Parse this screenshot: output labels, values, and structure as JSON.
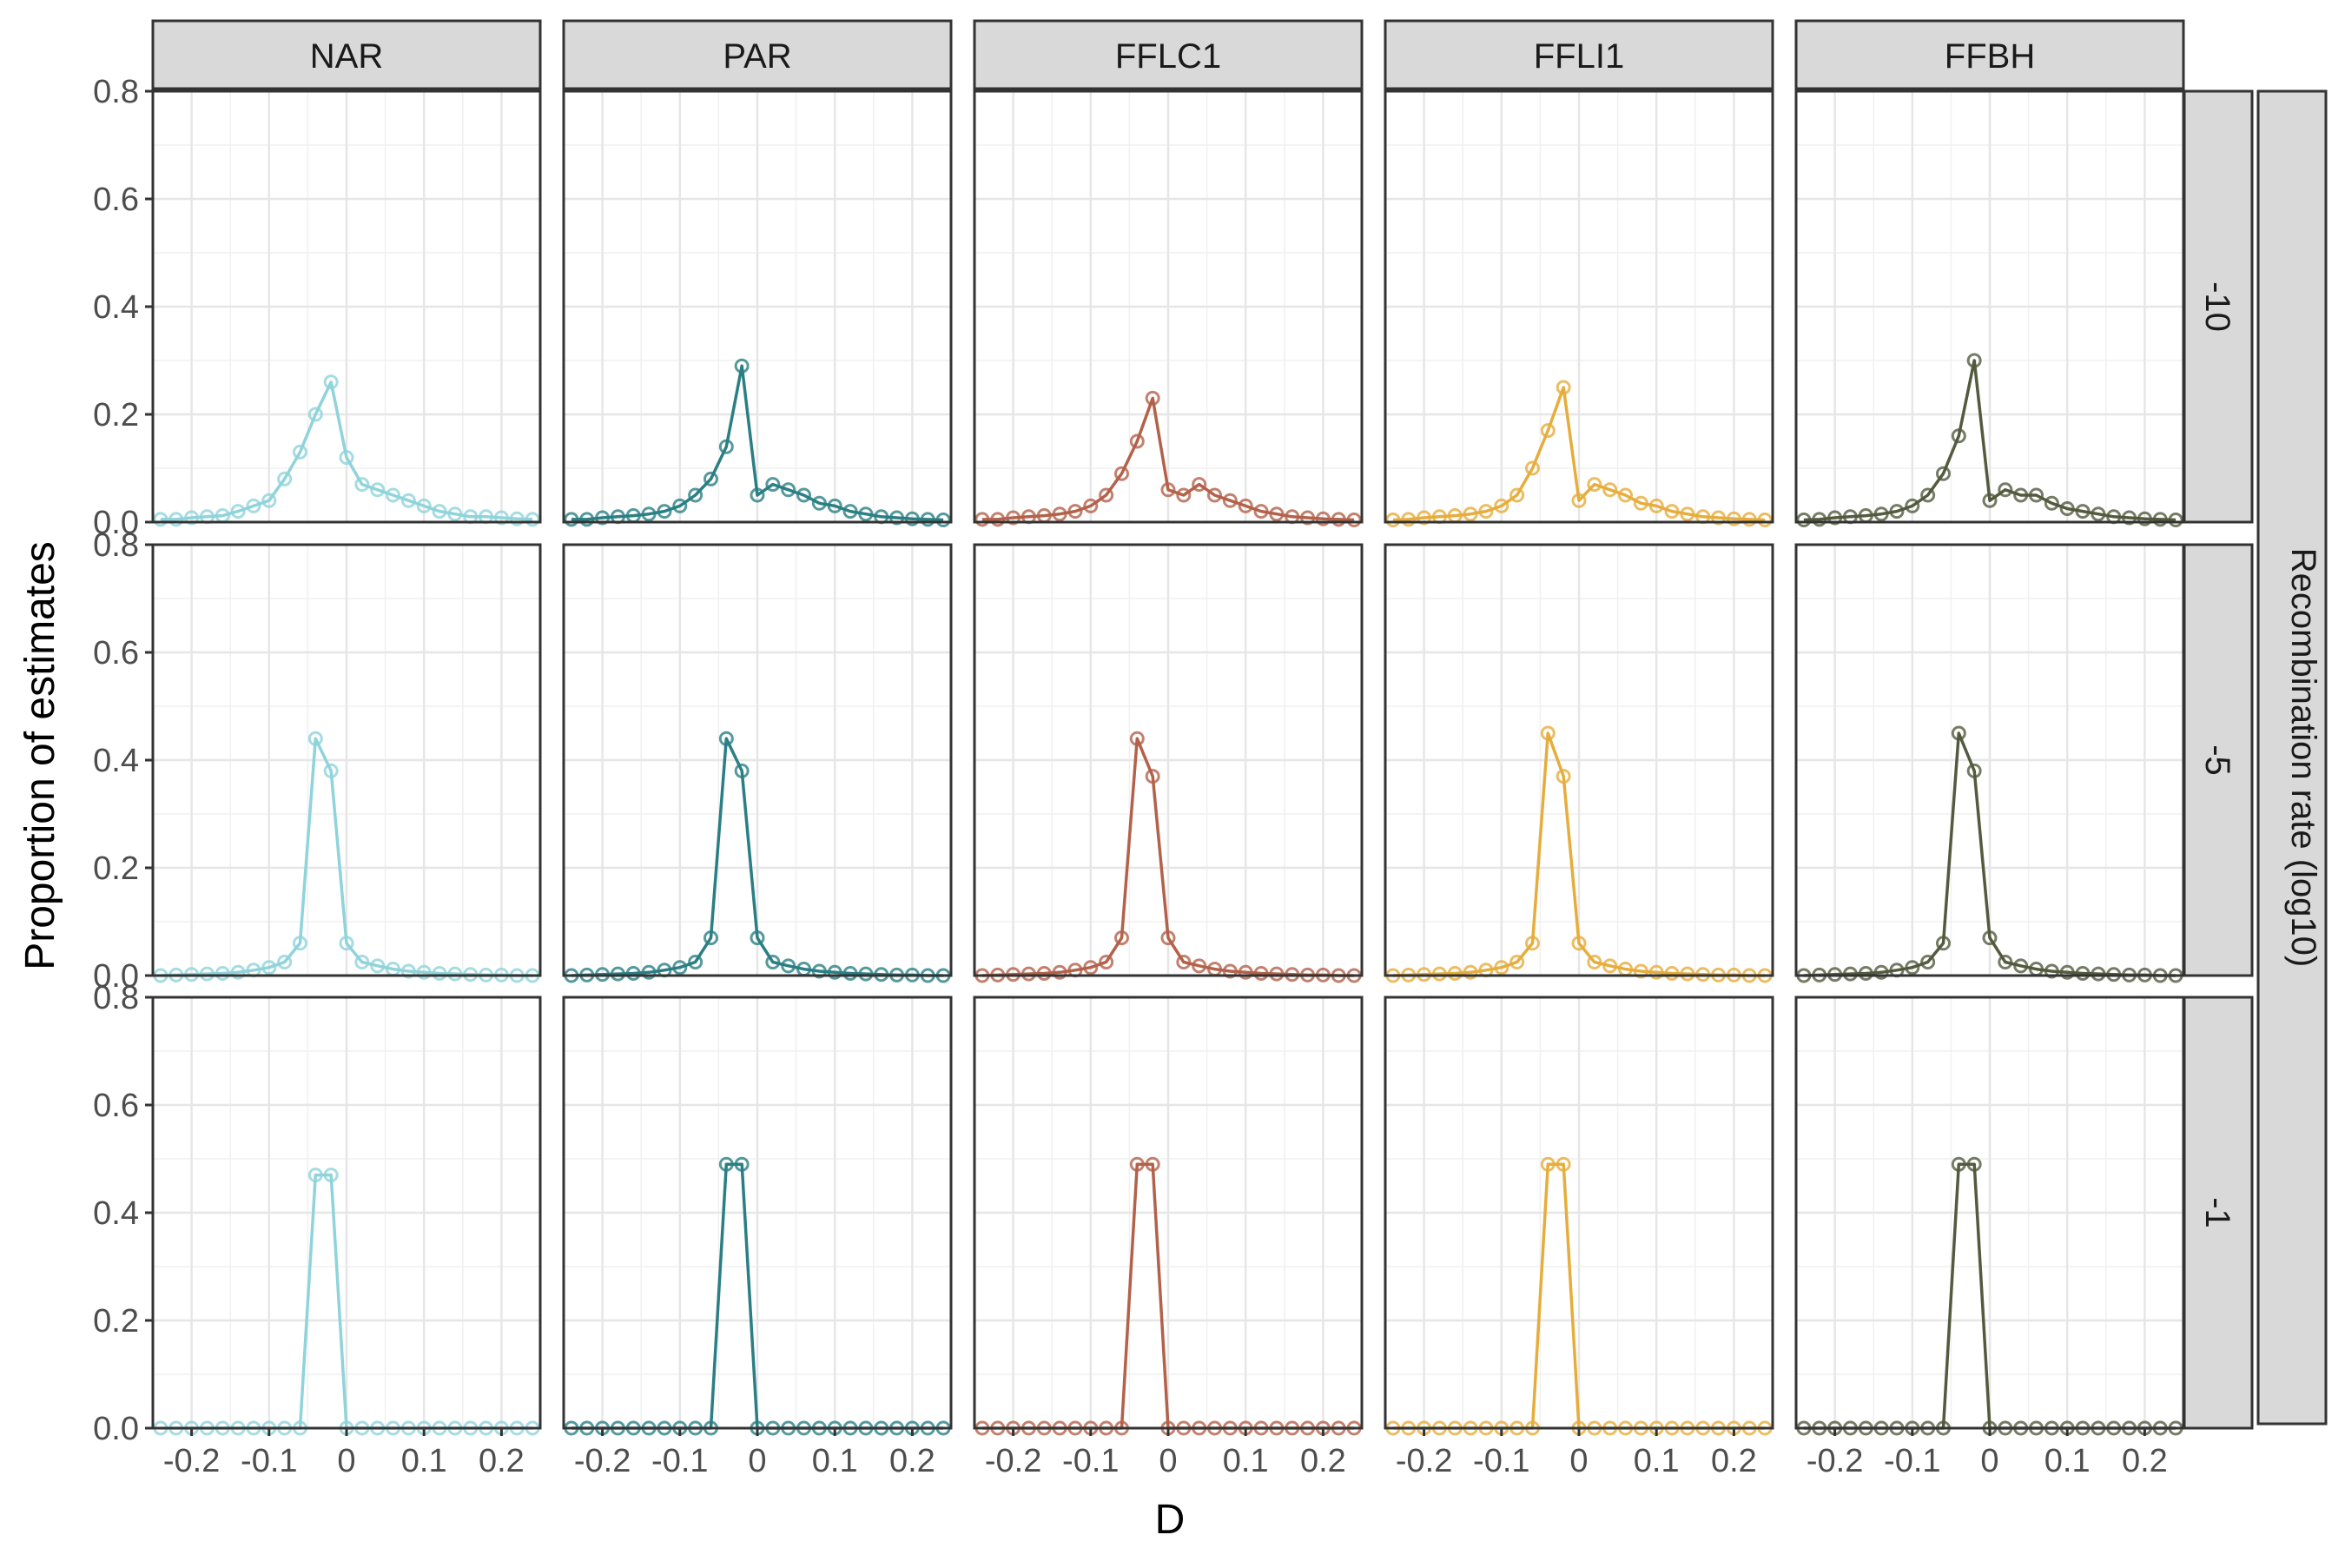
{
  "chart_data": {
    "type": "line",
    "xlabel": "D",
    "ylabel": "Proportion of estimates",
    "row_strip_title": "Recombination rate (log10)",
    "panels_columns": [
      "NAR",
      "PAR",
      "FFLC1",
      "FFLI1",
      "FFBH"
    ],
    "panels_rows": [
      "-10",
      "-5",
      "-1"
    ],
    "colors": {
      "NAR": "#8fd3db",
      "PAR": "#2a7f84",
      "FFLC1": "#b3614a",
      "FFLI1": "#e6ad3c",
      "FFBH": "#535a3e"
    },
    "xlim": [
      -0.25,
      0.25
    ],
    "ylim": [
      0,
      0.8
    ],
    "x_ticks": [
      -0.2,
      -0.1,
      0,
      0.1,
      0.2
    ],
    "x_tick_labels": [
      "-0.2",
      "-0.1",
      "0",
      "0.1",
      "0.2"
    ],
    "y_ticks": [
      0,
      0.2,
      0.4,
      0.6,
      0.8
    ],
    "y_tick_labels": [
      "0.0",
      "0.2",
      "0.4",
      "0.6",
      "0.8"
    ],
    "x": [
      -0.24,
      -0.22,
      -0.2,
      -0.18,
      -0.16,
      -0.14,
      -0.12,
      -0.1,
      -0.08,
      -0.06,
      -0.04,
      -0.02,
      0.0,
      0.02,
      0.04,
      0.06,
      0.08,
      0.1,
      0.12,
      0.14,
      0.16,
      0.18,
      0.2,
      0.22,
      0.24
    ],
    "grid": true,
    "legend": "none",
    "series": [
      {
        "col": "NAR",
        "row": "-10",
        "values": [
          0.005,
          0.005,
          0.008,
          0.01,
          0.012,
          0.02,
          0.03,
          0.04,
          0.08,
          0.13,
          0.2,
          0.26,
          0.12,
          0.07,
          0.06,
          0.05,
          0.04,
          0.03,
          0.02,
          0.015,
          0.01,
          0.01,
          0.008,
          0.006,
          0.005
        ]
      },
      {
        "col": "PAR",
        "row": "-10",
        "values": [
          0.005,
          0.005,
          0.008,
          0.01,
          0.012,
          0.015,
          0.02,
          0.03,
          0.05,
          0.08,
          0.14,
          0.29,
          0.05,
          0.07,
          0.06,
          0.05,
          0.035,
          0.03,
          0.02,
          0.015,
          0.01,
          0.008,
          0.006,
          0.005,
          0.004
        ]
      },
      {
        "col": "FFLC1",
        "row": "-10",
        "values": [
          0.005,
          0.005,
          0.008,
          0.01,
          0.012,
          0.015,
          0.02,
          0.03,
          0.05,
          0.09,
          0.15,
          0.23,
          0.06,
          0.05,
          0.07,
          0.05,
          0.04,
          0.03,
          0.02,
          0.015,
          0.01,
          0.008,
          0.006,
          0.005,
          0.004
        ]
      },
      {
        "col": "FFLI1",
        "row": "-10",
        "values": [
          0.004,
          0.005,
          0.008,
          0.01,
          0.012,
          0.015,
          0.02,
          0.03,
          0.05,
          0.1,
          0.17,
          0.25,
          0.04,
          0.07,
          0.06,
          0.05,
          0.035,
          0.03,
          0.02,
          0.015,
          0.01,
          0.008,
          0.006,
          0.005,
          0.004
        ]
      },
      {
        "col": "FFBH",
        "row": "-10",
        "values": [
          0.004,
          0.005,
          0.008,
          0.01,
          0.012,
          0.015,
          0.02,
          0.03,
          0.05,
          0.09,
          0.16,
          0.3,
          0.04,
          0.06,
          0.05,
          0.05,
          0.035,
          0.025,
          0.02,
          0.015,
          0.01,
          0.008,
          0.006,
          0.005,
          0.004
        ]
      },
      {
        "col": "NAR",
        "row": "-5",
        "values": [
          0.0,
          0.001,
          0.002,
          0.003,
          0.004,
          0.006,
          0.01,
          0.015,
          0.025,
          0.06,
          0.44,
          0.38,
          0.06,
          0.025,
          0.018,
          0.012,
          0.008,
          0.006,
          0.004,
          0.003,
          0.002,
          0.001,
          0.001,
          0.0,
          0.0
        ]
      },
      {
        "col": "PAR",
        "row": "-5",
        "values": [
          0.0,
          0.001,
          0.002,
          0.003,
          0.004,
          0.006,
          0.01,
          0.015,
          0.025,
          0.07,
          0.44,
          0.38,
          0.07,
          0.025,
          0.018,
          0.012,
          0.008,
          0.006,
          0.004,
          0.003,
          0.002,
          0.001,
          0.001,
          0.0,
          0.0
        ]
      },
      {
        "col": "FFLC1",
        "row": "-5",
        "values": [
          0.0,
          0.001,
          0.002,
          0.003,
          0.004,
          0.006,
          0.01,
          0.015,
          0.025,
          0.07,
          0.44,
          0.37,
          0.07,
          0.025,
          0.018,
          0.012,
          0.008,
          0.006,
          0.004,
          0.003,
          0.002,
          0.001,
          0.001,
          0.0,
          0.0
        ]
      },
      {
        "col": "FFLI1",
        "row": "-5",
        "values": [
          0.0,
          0.001,
          0.002,
          0.003,
          0.004,
          0.006,
          0.01,
          0.015,
          0.025,
          0.06,
          0.45,
          0.37,
          0.06,
          0.025,
          0.018,
          0.012,
          0.008,
          0.006,
          0.004,
          0.003,
          0.002,
          0.001,
          0.001,
          0.0,
          0.0
        ]
      },
      {
        "col": "FFBH",
        "row": "-5",
        "values": [
          0.0,
          0.001,
          0.002,
          0.003,
          0.004,
          0.006,
          0.01,
          0.015,
          0.025,
          0.06,
          0.45,
          0.38,
          0.07,
          0.025,
          0.018,
          0.012,
          0.008,
          0.006,
          0.004,
          0.003,
          0.002,
          0.001,
          0.001,
          0.0,
          0.0
        ]
      },
      {
        "col": "NAR",
        "row": "-1",
        "values": [
          0.0,
          0.0,
          0.0,
          0.0,
          0.0,
          0.0,
          0.0,
          0.0,
          0.0,
          0.0,
          0.47,
          0.47,
          0.0,
          0.0,
          0.0,
          0.0,
          0.0,
          0.0,
          0.0,
          0.0,
          0.0,
          0.0,
          0.0,
          0.0,
          0.0
        ]
      },
      {
        "col": "PAR",
        "row": "-1",
        "values": [
          0.0,
          0.0,
          0.0,
          0.0,
          0.0,
          0.0,
          0.0,
          0.0,
          0.0,
          0.0,
          0.49,
          0.49,
          0.0,
          0.0,
          0.0,
          0.0,
          0.0,
          0.0,
          0.0,
          0.0,
          0.0,
          0.0,
          0.0,
          0.0,
          0.0
        ]
      },
      {
        "col": "FFLC1",
        "row": "-1",
        "values": [
          0.0,
          0.0,
          0.0,
          0.0,
          0.0,
          0.0,
          0.0,
          0.0,
          0.0,
          0.0,
          0.49,
          0.49,
          0.0,
          0.0,
          0.0,
          0.0,
          0.0,
          0.0,
          0.0,
          0.0,
          0.0,
          0.0,
          0.0,
          0.0,
          0.0
        ]
      },
      {
        "col": "FFLI1",
        "row": "-1",
        "values": [
          0.0,
          0.0,
          0.0,
          0.0,
          0.0,
          0.0,
          0.0,
          0.0,
          0.0,
          0.0,
          0.49,
          0.49,
          0.0,
          0.0,
          0.0,
          0.0,
          0.0,
          0.0,
          0.0,
          0.0,
          0.0,
          0.0,
          0.0,
          0.0,
          0.0
        ]
      },
      {
        "col": "FFBH",
        "row": "-1",
        "values": [
          0.0,
          0.0,
          0.0,
          0.0,
          0.0,
          0.0,
          0.0,
          0.0,
          0.0,
          0.0,
          0.49,
          0.49,
          0.0,
          0.0,
          0.0,
          0.0,
          0.0,
          0.0,
          0.0,
          0.0,
          0.0,
          0.0,
          0.0,
          0.0,
          0.0
        ]
      }
    ]
  }
}
